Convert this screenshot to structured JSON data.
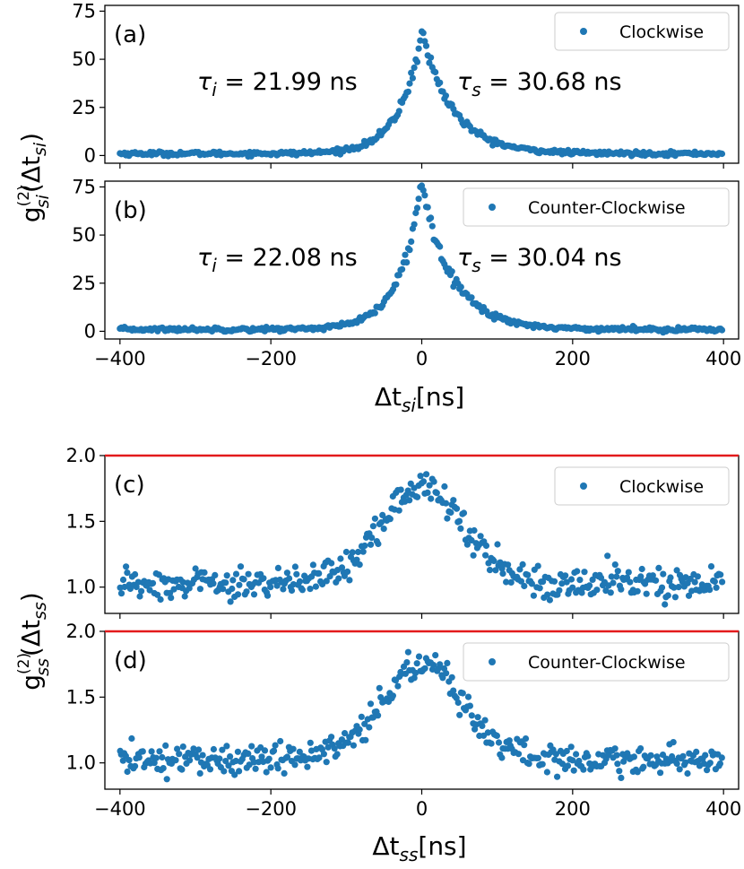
{
  "chart_data": [
    {
      "type": "scatter",
      "panel": "(a)",
      "legend": "Clockwise",
      "legend_position": "top-right",
      "annotations": [
        {
          "sym": "τ",
          "sub": "i",
          "text": " = 21.99 ns"
        },
        {
          "sym": "τ",
          "sub": "s",
          "text": " = 30.68 ns"
        }
      ],
      "xlim": [
        -420,
        420
      ],
      "ylim": [
        -4,
        78
      ],
      "xticks": [
        -400,
        -200,
        0,
        200,
        400
      ],
      "yticks": [
        0,
        25,
        50,
        75
      ],
      "xticks_labeled": false,
      "model": {
        "kind": "exp_peak",
        "peak": 64,
        "tau_left": 21.99,
        "tau_right": 30.68,
        "baseline": 1.0,
        "noise": 0.5
      },
      "color": "#1f77b4"
    },
    {
      "type": "scatter",
      "panel": "(b)",
      "legend": "Counter-Clockwise",
      "legend_position": "top-right",
      "annotations": [
        {
          "sym": "τ",
          "sub": "i",
          "text": " = 22.08 ns"
        },
        {
          "sym": "τ",
          "sub": "s",
          "text": " = 30.04 ns"
        }
      ],
      "xlim": [
        -420,
        420
      ],
      "ylim": [
        -4,
        78
      ],
      "xticks": [
        -400,
        -200,
        0,
        200,
        400
      ],
      "yticks": [
        0,
        25,
        50,
        75
      ],
      "xticks_labeled": true,
      "model": {
        "kind": "exp_peak",
        "peak": 77,
        "tau_left": 22.08,
        "tau_right": 30.04,
        "baseline": 1.0,
        "noise": 0.5
      },
      "color": "#1f77b4"
    },
    {
      "type": "scatter",
      "panel": "(c)",
      "legend": "Clockwise",
      "legend_position": "top-right",
      "annotations": [],
      "xlim": [
        -420,
        420
      ],
      "ylim": [
        0.8,
        2.0
      ],
      "xticks": [
        -400,
        -200,
        0,
        200,
        400
      ],
      "yticks": [
        1.0,
        1.5,
        2.0
      ],
      "xticks_labeled": false,
      "hline": {
        "y": 2.0,
        "color": "#e31a1c"
      },
      "model": {
        "kind": "gauss_peak",
        "peak": 1.76,
        "sigma": 55,
        "baseline": 1.03,
        "noise": 0.06
      },
      "color": "#1f77b4"
    },
    {
      "type": "scatter",
      "panel": "(d)",
      "legend": "Counter-Clockwise",
      "legend_position": "top-right",
      "annotations": [],
      "xlim": [
        -420,
        420
      ],
      "ylim": [
        0.8,
        2.0
      ],
      "xticks": [
        -400,
        -200,
        0,
        200,
        400
      ],
      "yticks": [
        1.0,
        1.5,
        2.0
      ],
      "xticks_labeled": true,
      "hline": {
        "y": 2.0,
        "color": "#e31a1c"
      },
      "model": {
        "kind": "gauss_peak",
        "peak": 1.75,
        "sigma": 55,
        "baseline": 1.03,
        "noise": 0.06
      },
      "color": "#1f77b4"
    }
  ],
  "xlabels": {
    "top": {
      "main": "Δt",
      "sub": "si",
      "unit": "[ns]"
    },
    "bottom": {
      "main": "Δt",
      "sub": "ss",
      "unit": "[ns]"
    }
  },
  "ylabels": {
    "top": {
      "main": "g",
      "sub": "si",
      "sup": "(2)",
      "arg_main": "Δt",
      "arg_sub": "si"
    },
    "bottom": {
      "main": "g",
      "sub": "ss",
      "sup": "(2)",
      "arg_main": "Δt",
      "arg_sub": "ss"
    }
  }
}
